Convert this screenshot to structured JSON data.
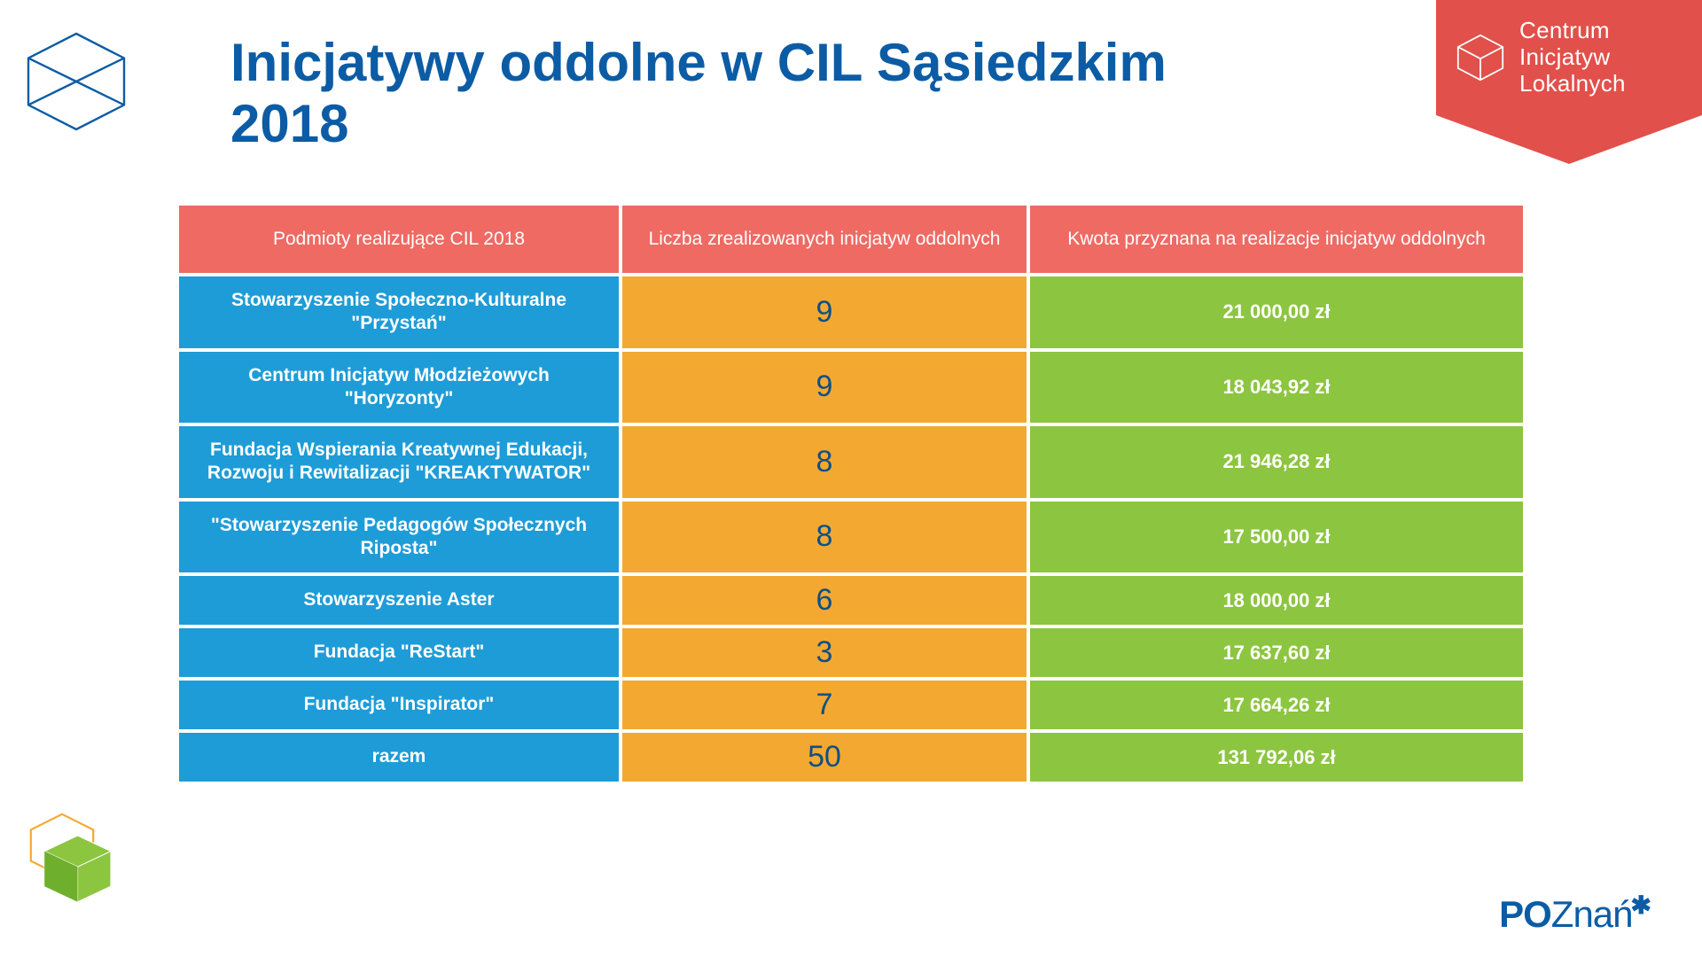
{
  "title": "Inicjatywy oddolne w CIL Sąsiedzkim 2018",
  "badge": {
    "line1": "Centrum",
    "line2": "Inicjatyw",
    "line3": "Lokalnych",
    "bg": "#e1504b",
    "text_color": "#ffffff"
  },
  "table": {
    "header_bg": "#ee6a63",
    "entity_bg": "#1e9cd7",
    "count_bg": "#f3a931",
    "amount_bg": "#8cc540",
    "count_text_color": "#0f4f86",
    "columns": [
      "Podmioty realizujące CIL  2018",
      "Liczba zrealizowanych inicjatyw oddolnych",
      "Kwota przyznana na realizacje inicjatyw oddolnych"
    ],
    "rows": [
      {
        "entity": "Stowarzyszenie Społeczno-Kulturalne \"Przystań\"",
        "count": "9",
        "amount": "21 000,00 zł"
      },
      {
        "entity": "Centrum Inicjatyw Młodzieżowych \"Horyzonty\"",
        "count": "9",
        "amount": "18 043,92 zł"
      },
      {
        "entity": "Fundacja Wspierania Kreatywnej Edukacji, Rozwoju i Rewitalizacji \"KREAKTYWATOR\"",
        "count": "8",
        "amount": "21 946,28 zł"
      },
      {
        "entity": "\"Stowarzyszenie Pedagogów Społecznych Riposta\"",
        "count": "8",
        "amount": "17 500,00 zł"
      },
      {
        "entity": "Stowarzyszenie Aster",
        "count": "6",
        "amount": "18 000,00 zł"
      },
      {
        "entity": "Fundacja \"ReStart\"",
        "count": "3",
        "amount": "17 637,60 zł"
      },
      {
        "entity": "Fundacja \"Inspirator\"",
        "count": "7",
        "amount": "17 664,26 zł"
      },
      {
        "entity": "razem",
        "count": "50",
        "amount": "131 792,06 zł"
      }
    ]
  },
  "footer_logo": {
    "text_a": "PO",
    "text_b": "Znań"
  },
  "colors": {
    "title": "#0c5ca5",
    "white": "#ffffff"
  }
}
